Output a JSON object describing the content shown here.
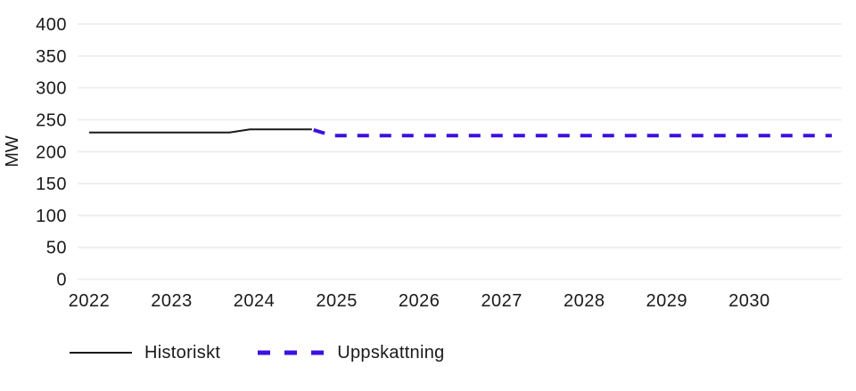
{
  "chart_data": {
    "type": "line",
    "title": "",
    "xlabel": "",
    "ylabel": "MW",
    "xlim": [
      2021.86,
      2031.12
    ],
    "ylim": [
      0,
      400
    ],
    "x_ticks": [
      2022,
      2023,
      2024,
      2025,
      2026,
      2027,
      2028,
      2029,
      2030
    ],
    "y_ticks": [
      0,
      50,
      100,
      150,
      200,
      250,
      300,
      350,
      400
    ],
    "grid": "horizontal",
    "legend_position": "bottom-left",
    "series": [
      {
        "name": "Historiskt",
        "style": "solid",
        "color": "#1a1a1a",
        "x": [
          2022.0,
          2023.7,
          2023.95,
          2024.7
        ],
        "y": [
          230,
          230,
          235,
          235
        ]
      },
      {
        "name": "Uppskattning",
        "style": "dashed",
        "color": "#3b10e0",
        "x": [
          2024.72,
          2024.95,
          2031.0
        ],
        "y": [
          234,
          225,
          225
        ]
      }
    ]
  },
  "colors": {
    "grid": "#efefef",
    "text": "#1a1a1a",
    "background": "#ffffff"
  }
}
